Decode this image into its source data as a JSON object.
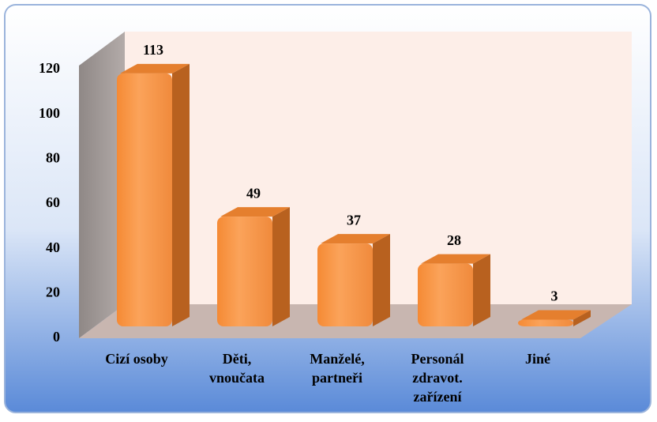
{
  "chart_data": {
    "type": "bar",
    "categories": [
      "Cizí osoby",
      "Děti,\nvnoučata",
      "Manželé,\npartneři",
      "Personál\nzdravot.\nzařízení",
      "Jiné"
    ],
    "values": [
      113,
      49,
      37,
      28,
      3
    ],
    "color": "#f79646",
    "ylim": [
      0,
      120
    ],
    "yticks": [
      0,
      20,
      40,
      60,
      80,
      100,
      120
    ]
  }
}
